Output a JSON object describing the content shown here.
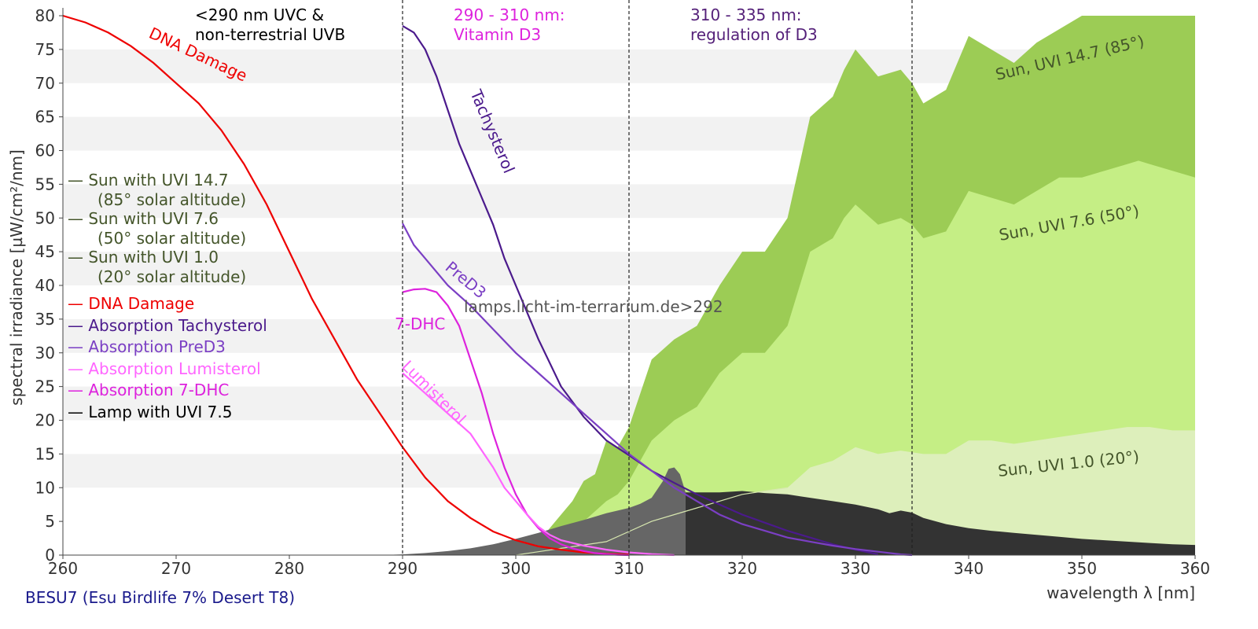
{
  "chart_data": {
    "type": "area",
    "xlabel": "wavelength λ [nm]",
    "ylabel": "spectral irradiance [µW/cm²/nm]",
    "xlim": [
      260,
      360
    ],
    "ylim": [
      0,
      80
    ],
    "xticks": [
      260,
      270,
      280,
      290,
      300,
      310,
      320,
      330,
      340,
      350,
      360
    ],
    "yticks": [
      0,
      5,
      10,
      15,
      20,
      25,
      30,
      35,
      40,
      45,
      50,
      55,
      60,
      65,
      70,
      75,
      80
    ],
    "grid": "horizontal bands",
    "lamp_name": "BESU7 (Esu Birdlife 7% Desert T8)",
    "watermark": "lamps.licht-im-terrarium.de>292",
    "vlines": [
      290,
      310,
      335
    ],
    "region_labels": [
      {
        "lines": [
          "<290 nm UVC &",
          "non-terrestrial UVB"
        ],
        "color": "#000000"
      },
      {
        "lines": [
          "290 - 310 nm:",
          "Vitamin D3"
        ],
        "color": "#dd22dd"
      },
      {
        "lines": [
          "310 - 335 nm:",
          "regulation of D3"
        ],
        "color": "#55217a"
      }
    ],
    "legend": [
      {
        "lines": [
          "— Sun with UVI 14.7",
          "(85° solar altitude)"
        ],
        "color": "#44552a"
      },
      {
        "lines": [
          "— Sun with UVI 7.6",
          "(50° solar altitude)"
        ],
        "color": "#44552a"
      },
      {
        "lines": [
          "— Sun with UVI 1.0",
          "(20° solar altitude)"
        ],
        "color": "#44552a"
      },
      {
        "lines": [
          "— DNA Damage"
        ],
        "color": "#ee0000"
      },
      {
        "lines": [
          "— Absorption Tachysterol"
        ],
        "color": "#4b1a8c"
      },
      {
        "lines": [
          "— Absorption PreD3"
        ],
        "color": "#7b3fc4"
      },
      {
        "lines": [
          "— Absorption Lumisterol"
        ],
        "color": "#ff66ff"
      },
      {
        "lines": [
          "— Absorption 7-DHC"
        ],
        "color": "#dd22dd"
      },
      {
        "lines": [
          "— Lamp with UVI 7.5"
        ],
        "color": "#000000"
      }
    ],
    "band_labels": [
      {
        "text": "Sun, UVI 14.7 (85°)"
      },
      {
        "text": "Sun, UVI 7.6 (50°)"
      },
      {
        "text": "Sun, UVI 1.0 (20°)"
      }
    ],
    "curve_labels": [
      {
        "text": "DNA Damage",
        "color": "#ee0000"
      },
      {
        "text": "Tachysterol",
        "color": "#4b1a8c"
      },
      {
        "text": "PreD3",
        "color": "#7b3fc4"
      },
      {
        "text": "7-DHC",
        "color": "#dd22dd"
      },
      {
        "text": "Lumisterol",
        "color": "#ff66ff"
      }
    ],
    "series": [
      {
        "id": "sun147",
        "kind": "area",
        "color": "#9ccc55",
        "x": [
          300,
          302,
          303,
          304,
          305,
          306,
          307,
          308,
          309,
          310,
          311,
          312,
          314,
          316,
          318,
          320,
          322,
          324,
          326,
          328,
          329,
          330,
          332,
          334,
          335,
          336,
          338,
          340,
          342,
          344,
          346,
          348,
          350,
          352,
          354,
          355,
          356,
          358,
          360
        ],
        "y": [
          0,
          2,
          4,
          6,
          8,
          11,
          12,
          17,
          16,
          19,
          24,
          29,
          32,
          34,
          40,
          45,
          45,
          50,
          65,
          68,
          72,
          75,
          71,
          72,
          70,
          67,
          69,
          77,
          75,
          73,
          76,
          78,
          80,
          82,
          83,
          84,
          83,
          81,
          80
        ]
      },
      {
        "id": "sun76",
        "kind": "area",
        "color": "#c5ee85",
        "x": [
          302,
          304,
          306,
          308,
          309,
          310,
          312,
          314,
          316,
          318,
          320,
          322,
          324,
          326,
          328,
          329,
          330,
          332,
          334,
          335,
          336,
          338,
          340,
          342,
          344,
          346,
          348,
          350,
          352,
          354,
          355,
          356,
          358,
          360
        ],
        "y": [
          0,
          2,
          5,
          8,
          9,
          11,
          17,
          20,
          22,
          27,
          30,
          30,
          34,
          45,
          47,
          50,
          52,
          49,
          50,
          49,
          47,
          48,
          54,
          53,
          52,
          54,
          56,
          56,
          57,
          58,
          58.5,
          58,
          57,
          56
        ]
      },
      {
        "id": "sun10",
        "kind": "area",
        "color": "#ddefbb",
        "x": [
          304,
          306,
          308,
          310,
          312,
          314,
          316,
          318,
          320,
          322,
          324,
          326,
          328,
          330,
          332,
          334,
          336,
          338,
          340,
          342,
          344,
          346,
          348,
          350,
          352,
          354,
          355,
          356,
          358,
          360
        ],
        "y": [
          0,
          1,
          2,
          3.5,
          5,
          6,
          7,
          8,
          9,
          9.5,
          10,
          13,
          14,
          16,
          15,
          15.5,
          15,
          15,
          17,
          17,
          16.5,
          17,
          17.5,
          18,
          18.5,
          19,
          19,
          19,
          18.5,
          18.5
        ]
      },
      {
        "id": "lamp_dark",
        "kind": "area",
        "color": "#333333",
        "x": [
          315,
          316,
          318,
          320,
          322,
          324,
          326,
          328,
          330,
          332,
          333,
          334,
          335,
          336,
          338,
          340,
          342,
          344,
          346,
          348,
          350,
          352,
          354,
          356,
          358,
          360
        ],
        "y": [
          9.3,
          9.3,
          9.3,
          9.5,
          9.2,
          9.0,
          8.5,
          8.0,
          7.5,
          6.8,
          6.2,
          6.6,
          6.3,
          5.5,
          4.6,
          4.0,
          3.6,
          3.3,
          3.0,
          2.7,
          2.4,
          2.2,
          2.0,
          1.8,
          1.6,
          1.5
        ]
      },
      {
        "id": "lamp_grey",
        "kind": "area",
        "color": "#666666",
        "x": [
          288,
          290,
          292,
          294,
          296,
          298,
          300,
          302,
          304,
          306,
          308,
          310,
          311,
          312,
          313,
          313.5,
          314,
          314.5,
          315
        ],
        "y": [
          0,
          0.1,
          0.3,
          0.6,
          1.0,
          1.6,
          2.4,
          3.3,
          4.3,
          5.2,
          6.2,
          7.0,
          7.6,
          8.5,
          11.0,
          12.8,
          13.0,
          12.0,
          9.3
        ]
      },
      {
        "id": "sun10_line",
        "kind": "line",
        "color": "#d8e8b0",
        "x": [
          300,
          302,
          304,
          306,
          308,
          310,
          312,
          314,
          316,
          318,
          320,
          322,
          324
        ],
        "y": [
          0,
          0.5,
          1,
          1.5,
          2,
          3.5,
          5,
          6,
          7,
          8,
          9,
          9.5,
          10
        ]
      },
      {
        "id": "dna",
        "kind": "line",
        "color": "#ee0000",
        "x": [
          260,
          262,
          264,
          266,
          268,
          270,
          272,
          274,
          276,
          278,
          280,
          282,
          284,
          286,
          288,
          290,
          292,
          294,
          296,
          298,
          300,
          302,
          304,
          306,
          308,
          310
        ],
        "y": [
          80,
          79,
          77.5,
          75.5,
          73,
          70,
          67,
          63,
          58,
          52,
          45,
          38,
          32,
          26,
          21,
          16,
          11.5,
          8,
          5.5,
          3.5,
          2.2,
          1.3,
          0.8,
          0.4,
          0.2,
          0.1
        ]
      },
      {
        "id": "tachysterol",
        "kind": "line",
        "color": "#4b1a8c",
        "x": [
          290,
          291,
          292,
          293,
          294,
          295,
          296,
          297,
          298,
          299,
          300,
          302,
          304,
          306,
          308,
          310,
          312,
          314,
          316,
          318,
          320,
          322,
          324,
          326,
          328,
          330,
          332
        ],
        "y": [
          78.5,
          77.5,
          75,
          71,
          66,
          61,
          57,
          53,
          49,
          44,
          40,
          32,
          25,
          20.5,
          17,
          14.8,
          12.5,
          10.7,
          9,
          7.5,
          6,
          4.8,
          3.6,
          2.6,
          1.6,
          0.8,
          0.1
        ]
      },
      {
        "id": "pred3",
        "kind": "line",
        "color": "#7b3fc4",
        "x": [
          290,
          291,
          292,
          294,
          296,
          298,
          300,
          302,
          304,
          306,
          308,
          310,
          312,
          314,
          316,
          318,
          320,
          322,
          324,
          326,
          328,
          330,
          332,
          334,
          335
        ],
        "y": [
          49.2,
          46,
          44,
          40,
          37,
          33.5,
          30,
          27,
          24,
          21,
          18,
          15,
          12.5,
          10,
          8,
          6,
          4.6,
          3.6,
          2.6,
          2,
          1.4,
          0.9,
          0.5,
          0.1,
          0
        ]
      },
      {
        "id": "dhc",
        "kind": "line",
        "color": "#dd22dd",
        "x": [
          290,
          291,
          292,
          293,
          294,
          295,
          296,
          297,
          298,
          299,
          300,
          301,
          302,
          303,
          304,
          305,
          306,
          307,
          308,
          309,
          310
        ],
        "y": [
          39,
          39.4,
          39.5,
          39,
          37,
          34,
          29,
          24,
          18,
          13,
          9,
          6,
          4,
          2.5,
          1.6,
          1,
          0.6,
          0.3,
          0.15,
          0.05,
          0
        ]
      },
      {
        "id": "lumisterol",
        "kind": "line",
        "color": "#ff66ff",
        "x": [
          290,
          292,
          294,
          296,
          298,
          299,
          300,
          301,
          302,
          303,
          304,
          306,
          308,
          310,
          312,
          314
        ],
        "y": [
          27,
          24,
          21,
          18,
          13,
          10,
          8,
          6,
          4.2,
          3,
          2.2,
          1.4,
          0.8,
          0.4,
          0.15,
          0
        ]
      }
    ]
  }
}
